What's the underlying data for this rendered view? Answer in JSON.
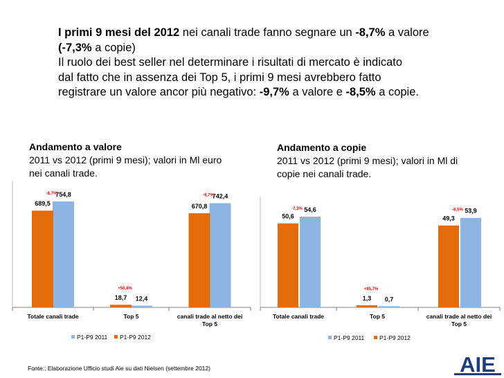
{
  "intro": {
    "l1_b1": "I primi 9 mesi del 2012",
    "l1_t1": " nei canali trade fanno segnare un ",
    "l1_b2": "-8,7%",
    "l1_t2": " a valore",
    "l2_b": "(-7,3%",
    "l2_t": " a copie)",
    "l3": "Il ruolo dei best seller nel determinare i risultati di mercato è indicato",
    "l4": "dal fatto che in assenza dei Top 5, i primi 9 mesi avrebbero fatto",
    "l5_t1": "registrare un valore ancor più negativo:  ",
    "l5_b1": "-9,7%",
    "l5_t2": " a valore e ",
    "l5_b2": "-8,5%",
    "l5_t3": " a copie."
  },
  "source_note": "Fonte:: Elaborazione Ufficio studi Aie su dati Nielsen (settembre 2012)",
  "logo_text": "AIE",
  "chart_data": [
    {
      "type": "bar",
      "title": "Andamento a valore",
      "subtitle_lines": [
        "2011 vs 2012 (primi 9 mesi); valori in Ml euro",
        "nei canali trade."
      ],
      "categories": [
        [
          "Totale canali trade"
        ],
        [
          "Top 5"
        ],
        [
          "canali trade  al netto dei",
          "Top 5"
        ]
      ],
      "series": [
        {
          "name": "P1-P9 2011",
          "color": "#8db4e2",
          "values": [
            754.8,
            12.4,
            742.4
          ],
          "labels": [
            "754,8",
            "12,4",
            "742,4"
          ]
        },
        {
          "name": "P1-P9 2012",
          "color": "#e46c0a",
          "values": [
            689.5,
            18.7,
            670.8
          ],
          "labels": [
            "689,5",
            "18,7",
            "670,8"
          ]
        }
      ],
      "changes": [
        "-8,7%",
        "+50,8%",
        "-9,7%"
      ],
      "change_color": "#ff0000",
      "ylim": [
        0,
        754.8
      ],
      "legend": "bottom",
      "grid": false
    },
    {
      "type": "bar",
      "title": "Andamento a copie",
      "subtitle_lines": [
        "2011 vs 2012 (primi 9 mesi); valori in Ml di",
        "copie nei canali trade."
      ],
      "categories": [
        [
          "Totale canali trade"
        ],
        [
          "Top 5"
        ],
        [
          "canali trade  al netto dei",
          "Top 5"
        ]
      ],
      "series": [
        {
          "name": "P1-P9 2011",
          "color": "#8db4e2",
          "values": [
            54.6,
            0.7,
            53.9
          ],
          "labels": [
            "54,6",
            "0,7",
            "53,9"
          ]
        },
        {
          "name": "P1-P9 2012",
          "color": "#e46c0a",
          "values": [
            50.6,
            1.3,
            49.3
          ],
          "labels": [
            "50,6",
            "1,3",
            "49,3"
          ]
        }
      ],
      "changes": [
        "-7,3%",
        "+85,7%",
        "-8,5%"
      ],
      "change_color": "#ff0000",
      "ylim": [
        0,
        54.6
      ],
      "legend": "bottom",
      "grid": false
    }
  ]
}
